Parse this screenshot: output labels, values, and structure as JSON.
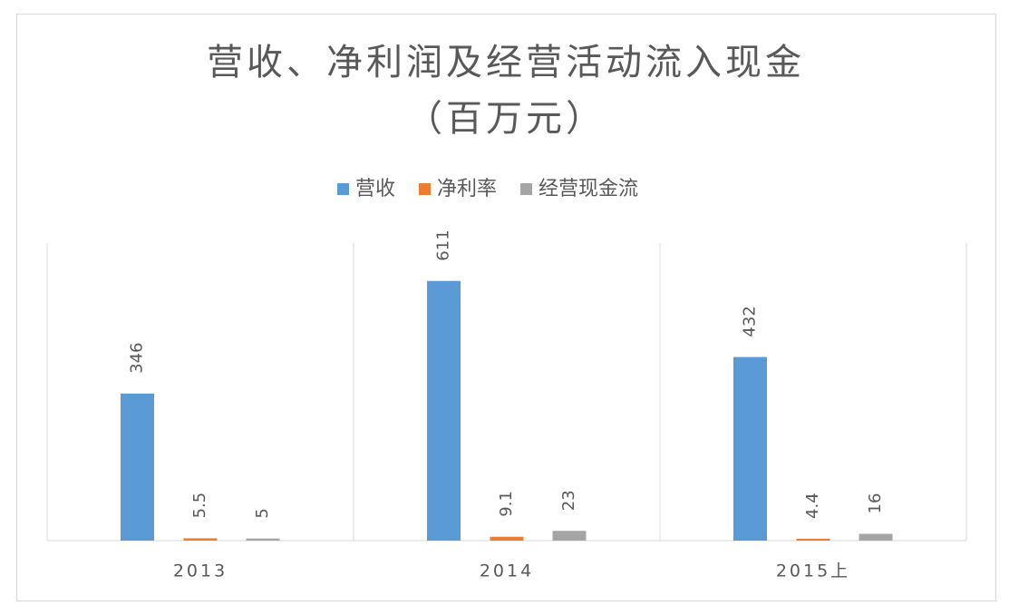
{
  "chart_data": {
    "type": "bar",
    "title": "营收、净利润及经营活动流入现金",
    "subtitle": "（百万元）",
    "categories": [
      "2013",
      "2014",
      "2015上"
    ],
    "series": [
      {
        "name": "营收",
        "color": "#5b9bd5",
        "values": [
          346,
          611,
          432
        ]
      },
      {
        "name": "净利率",
        "color": "#ed7d31",
        "values": [
          5.5,
          9.1,
          4.4
        ]
      },
      {
        "name": "经营现金流",
        "color": "#a5a5a5",
        "values": [
          5,
          23,
          16
        ]
      }
    ],
    "ylim": [
      0,
      700
    ],
    "legend": "top"
  }
}
